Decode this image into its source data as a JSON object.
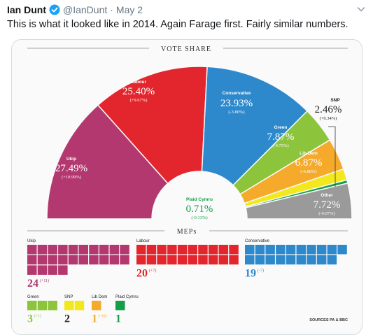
{
  "tweet": {
    "author": "Ian Dunt",
    "handle": "@IanDunt",
    "separator": "·",
    "date": "May 2",
    "text": "This is what it looked like in 2014. Again Farage first. Fairly similar numbers."
  },
  "icons": {
    "verified": "verified-badge-icon",
    "menu": "chevron-down-icon"
  },
  "colors": {
    "ukip": "#b3386f",
    "labour": "#e3262d",
    "conservative": "#2e89cc",
    "green": "#8cc43c",
    "libdem": "#f5aa2c",
    "snp": "#f3e81d",
    "plaid": "#149e48",
    "other": "#9a9a9a",
    "twitter_blue": "#1da1f2"
  },
  "graphic": {
    "vote_share_title": "VOTE SHARE",
    "meps_title": "MEPs",
    "sources": "SOURCES PA & BBC"
  },
  "chart_data": [
    {
      "type": "pie",
      "title": "VOTE SHARE",
      "categories": [
        "Ukip",
        "Labour",
        "Conservative",
        "Green",
        "Lib Dem",
        "SNP",
        "Plaid Cymru",
        "Other"
      ],
      "values": [
        27.49,
        25.4,
        23.93,
        7.87,
        6.87,
        2.46,
        0.71,
        7.72
      ],
      "value_labels": [
        "27.49%",
        "25.40%",
        "23.93%",
        "7.87%",
        "6.87%",
        "2.46%",
        "0.71%",
        "7.72%"
      ],
      "changes": [
        "(+10.99%)",
        "(+9.67%)",
        "(-3.80%)",
        "(-0.75%)",
        "(-6.88%)",
        "(+0.34%)",
        "(-0.13%)",
        "(-9.07%)"
      ]
    },
    {
      "type": "bar",
      "title": "MEPs",
      "categories": [
        "Ukip",
        "Labour",
        "Conservative",
        "Green",
        "SNP",
        "Lib Dem",
        "Plaid Cymru"
      ],
      "values": [
        24,
        20,
        19,
        3,
        2,
        1,
        1
      ],
      "changes": [
        "(+11)",
        "(+7)",
        "(-7)",
        "(+1)",
        "",
        "(-10)",
        ""
      ]
    }
  ]
}
